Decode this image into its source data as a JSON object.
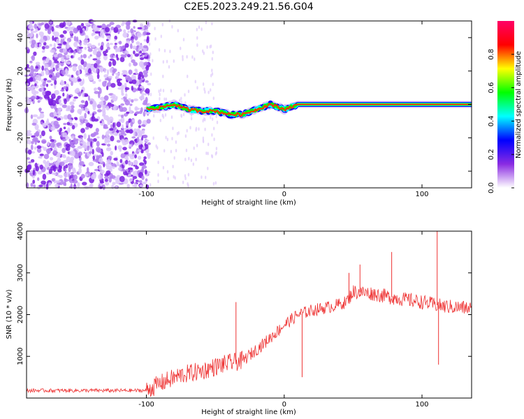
{
  "title": "C2E5.2023.249.21.56.G04",
  "chart_data": [
    {
      "type": "heatmap",
      "xlabel": "Height of straight line (km)",
      "ylabel": "Frequency (Hz)",
      "xlim": [
        -187,
        136
      ],
      "ylim": [
        -50,
        50
      ],
      "x_ticks": [
        -100,
        0,
        100
      ],
      "y_ticks": [
        -40,
        -20,
        0,
        20,
        40
      ],
      "colorbar": {
        "label": "Normalized spectral amplitude",
        "range": [
          0,
          1
        ],
        "ticks": [
          "0.0",
          "0.2",
          "0.4",
          "0.6",
          "0.8"
        ],
        "colors": [
          "#ffffff",
          "#8a2be2",
          "#0000ff",
          "#00ffff",
          "#00ff00",
          "#ffff00",
          "#ff0000",
          "#ff0066"
        ]
      },
      "description_points": {
        "noise_region_x": [
          -187,
          -98
        ],
        "signal_track": [
          {
            "x": -100,
            "y": -3
          },
          {
            "x": -90,
            "y": -2
          },
          {
            "x": -80,
            "y": 0
          },
          {
            "x": -70,
            "y": -3
          },
          {
            "x": -60,
            "y": -4
          },
          {
            "x": -50,
            "y": -4
          },
          {
            "x": -40,
            "y": -6
          },
          {
            "x": -30,
            "y": -6
          },
          {
            "x": -20,
            "y": -3
          },
          {
            "x": -10,
            "y": 0
          },
          {
            "x": 0,
            "y": -3
          },
          {
            "x": 10,
            "y": 0
          },
          {
            "x": 50,
            "y": 0
          },
          {
            "x": 100,
            "y": 0
          },
          {
            "x": 136,
            "y": 0
          }
        ]
      }
    },
    {
      "type": "line",
      "xlabel": "Height of straight line (km)",
      "ylabel": "SNR (10 * v/v)",
      "xlim": [
        -187,
        136
      ],
      "ylim": [
        0,
        4000
      ],
      "x_ticks": [
        -100,
        0,
        100
      ],
      "y_ticks": [
        1000,
        2000,
        3000,
        4000
      ],
      "color": "#ee3333",
      "series_trend": [
        {
          "x": -187,
          "y": 180
        },
        {
          "x": -100,
          "y": 180
        },
        {
          "x": -90,
          "y": 350
        },
        {
          "x": -75,
          "y": 550
        },
        {
          "x": -60,
          "y": 650
        },
        {
          "x": -45,
          "y": 800
        },
        {
          "x": -30,
          "y": 900
        },
        {
          "x": -15,
          "y": 1300
        },
        {
          "x": 0,
          "y": 1750
        },
        {
          "x": 10,
          "y": 2000
        },
        {
          "x": 20,
          "y": 2100
        },
        {
          "x": 35,
          "y": 2200
        },
        {
          "x": 45,
          "y": 2300
        },
        {
          "x": 50,
          "y": 2550
        },
        {
          "x": 65,
          "y": 2500
        },
        {
          "x": 80,
          "y": 2400
        },
        {
          "x": 100,
          "y": 2300
        },
        {
          "x": 115,
          "y": 2200
        },
        {
          "x": 136,
          "y": 2150
        }
      ],
      "spikes": [
        {
          "x": -35,
          "y": 2300
        },
        {
          "x": 47,
          "y": 3000
        },
        {
          "x": 55,
          "y": 3200
        },
        {
          "x": 78,
          "y": 3500
        },
        {
          "x": 111,
          "y": 4000
        },
        {
          "x": 112,
          "y": 800
        },
        {
          "x": 13,
          "y": 500
        }
      ]
    }
  ]
}
